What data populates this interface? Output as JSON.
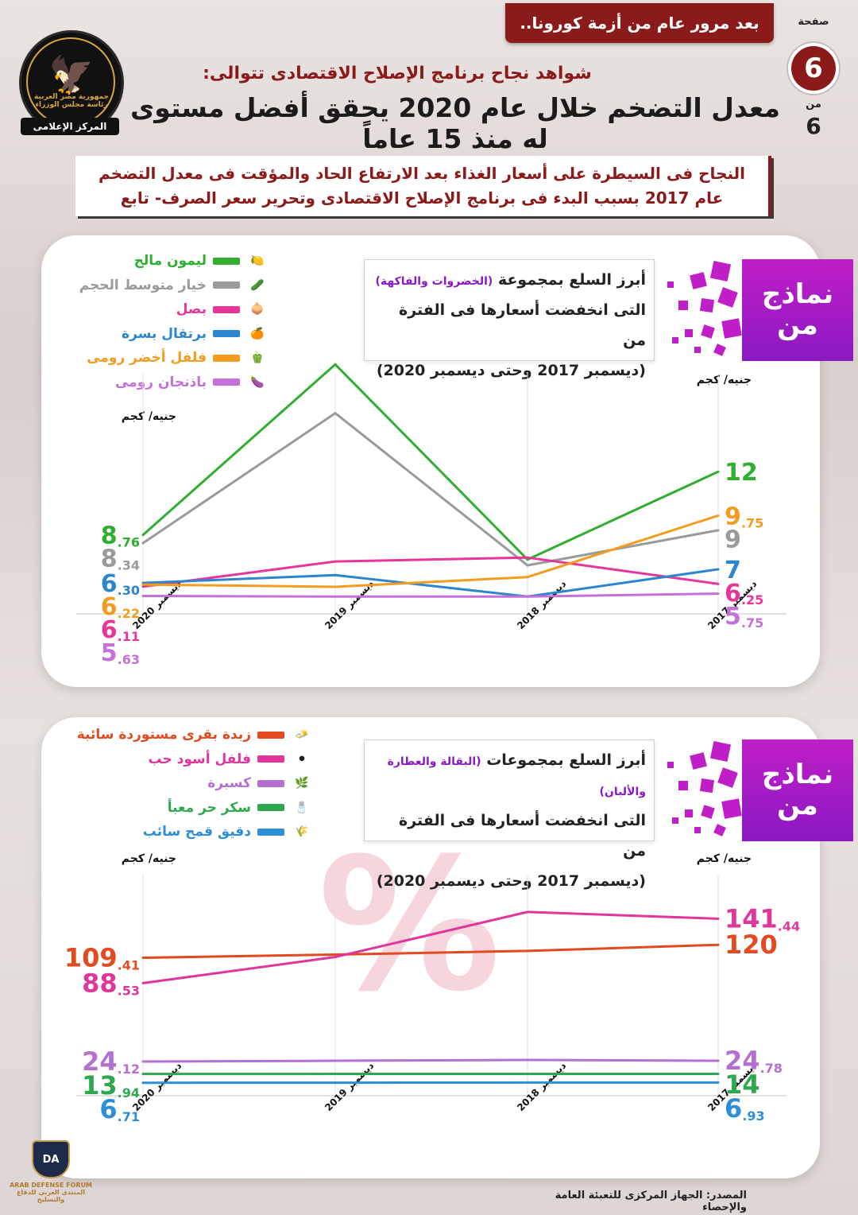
{
  "header": {
    "banner": "بعد مرور عام من أزمة كورونا..",
    "page_label": "صفحة",
    "page_number": "6",
    "page_of": "من",
    "page_total": "6",
    "logo_text": "جمهورية مصر العربية رئاسة مجلس الوزراء",
    "logo_strip": "المركز الإعلامى",
    "subtitle": "شواهد نجاح برنامج الإصلاح الاقتصادى تتوالى:",
    "title": "معدل التضخم خلال عام 2020 يحقق أفضل مستوى له منذ 15 عاماً",
    "intro_line1": "النجاح فى السيطرة على أسعار الغذاء بعد الارتفاع الحاد والمؤقت فى معدل التضخم",
    "intro_line2": "عام 2017 بسبب البدء فى برنامج الإصلاح الاقتصادى وتحرير سعر الصرف- تابع"
  },
  "panel1": {
    "badge_line1": "نماذج",
    "badge_line2": "من",
    "box_line1": "أبرز السلع بمجموعة",
    "box_highlight": "(الخضروات والفاكهة)",
    "box_line2": "التى انخفضت أسعارها فى الفترة من",
    "box_line3": "(ديسمبر 2017 وحتى ديسمبر 2020)",
    "unit_right": "جنيه/ كجم",
    "unit_left": "جنيه/ كجم"
  },
  "panel2": {
    "badge_line1": "نماذج",
    "badge_line2": "من",
    "box_line1": "أبرز السلع بمجموعات",
    "box_highlight": "(البقالة والعطارة والألبان)",
    "box_line2": "التى انخفضت أسعارها فى الفترة من",
    "box_line3": "(ديسمبر 2017 وحتى ديسمبر 2020)",
    "unit_right": "جنيه/ كجم",
    "unit_left": "جنيه/ كجم"
  },
  "footer": {
    "source": "المصدر: الجهاز المركزى للتعبئة العامة والإحصاء",
    "forum_name": "ARAB DEFENSE FORUM",
    "forum_name_ar": "المنتدى العربي للدفاع والتسليح",
    "forum_initials": "DA"
  },
  "chart_data": [
    {
      "type": "line",
      "x": [
        "ديسمبر 2017",
        "ديسمبر 2018",
        "ديسمبر 2019",
        "ديسمبر 2020"
      ],
      "ylabel": "جنيه/ كجم",
      "grid": true,
      "legend_placement": "top-left",
      "series": [
        {
          "name": "ليمون مالح",
          "color": "#2fae2f",
          "icon": "lemon-icon",
          "values": [
            12,
            7.5,
            17.5,
            8.76
          ],
          "label_start": {
            "int": "12",
            "dec": ""
          },
          "label_end": {
            "int": "8",
            "dec": ".76"
          }
        },
        {
          "name": "خيار متوسط الحجم",
          "color": "#9a9a9a",
          "icon": "cucumber-icon",
          "values": [
            9,
            7.2,
            15,
            8.34
          ],
          "label_start": {
            "int": "9",
            "dec": ""
          },
          "label_end": {
            "int": "8",
            "dec": ".34"
          }
        },
        {
          "name": "بصل",
          "color": "#e8359a",
          "icon": "onion-icon",
          "values": [
            6.25,
            7.6,
            7.4,
            6.11
          ],
          "label_start": {
            "int": "6",
            "dec": ".25"
          },
          "label_end": {
            "int": "6",
            "dec": ".11"
          }
        },
        {
          "name": "برتقال بسرة",
          "color": "#2b86cf",
          "icon": "orange-icon",
          "values": [
            7,
            5.6,
            6.7,
            6.3
          ],
          "label_start": {
            "int": "7",
            "dec": ""
          },
          "label_end": {
            "int": "6",
            "dec": ".30"
          }
        },
        {
          "name": "فلفل أخضر رومى",
          "color": "#f39c1f",
          "icon": "pepper-icon",
          "values": [
            9.75,
            6.6,
            6.1,
            6.22
          ],
          "label_start": {
            "int": "9",
            "dec": ".75"
          },
          "label_end": {
            "int": "6",
            "dec": ".22"
          }
        },
        {
          "name": "باذنجان رومى",
          "color": "#c56fd8",
          "icon": "eggplant-icon",
          "values": [
            5.75,
            5.6,
            5.6,
            5.63
          ],
          "label_start": {
            "int": "5",
            "dec": ".75"
          },
          "label_end": {
            "int": "5",
            "dec": ".63"
          }
        }
      ],
      "ylim": [
        5,
        18
      ]
    },
    {
      "type": "line",
      "x": [
        "ديسمبر 2017",
        "ديسمبر 2018",
        "ديسمبر 2019",
        "ديسمبر 2020"
      ],
      "ylabel": "جنيه/ كجم",
      "grid": true,
      "legend_placement": "top-left",
      "series": [
        {
          "name": "زبدة بقرى مستوردة سائبة",
          "color": "#e24a1f",
          "icon": "butter-icon",
          "values": [
            120,
            115,
            112,
            109.41
          ],
          "label_start": {
            "int": "120",
            "dec": ""
          },
          "label_end": {
            "int": "109",
            "dec": ".41"
          }
        },
        {
          "name": "فلفل أسود حب",
          "color": "#e0359a",
          "icon": "black-pepper-icon",
          "values": [
            141.44,
            147,
            110,
            88.53
          ],
          "label_start": {
            "int": "141",
            "dec": ".44"
          },
          "label_end": {
            "int": "88",
            "dec": ".53"
          }
        },
        {
          "name": "كسبرة",
          "color": "#b56fd0",
          "icon": "coriander-icon",
          "values": [
            24.78,
            25.5,
            24.8,
            24.12
          ],
          "label_start": {
            "int": "24",
            "dec": ".78"
          },
          "label_end": {
            "int": "24",
            "dec": ".12"
          }
        },
        {
          "name": "سكر حر معبأ",
          "color": "#2ea84f",
          "icon": "sugar-icon",
          "values": [
            14,
            14,
            14,
            13.94
          ],
          "label_start": {
            "int": "14",
            "dec": ""
          },
          "label_end": {
            "int": "13",
            "dec": ".94"
          }
        },
        {
          "name": "دقيق قمح سائب",
          "color": "#2d8fd8",
          "icon": "flour-icon",
          "values": [
            6.93,
            6.9,
            6.8,
            6.71
          ],
          "label_start": {
            "int": "6",
            "dec": ".93"
          },
          "label_end": {
            "int": "6",
            "dec": ".71"
          }
        }
      ],
      "ylim": [
        0,
        175
      ]
    }
  ]
}
